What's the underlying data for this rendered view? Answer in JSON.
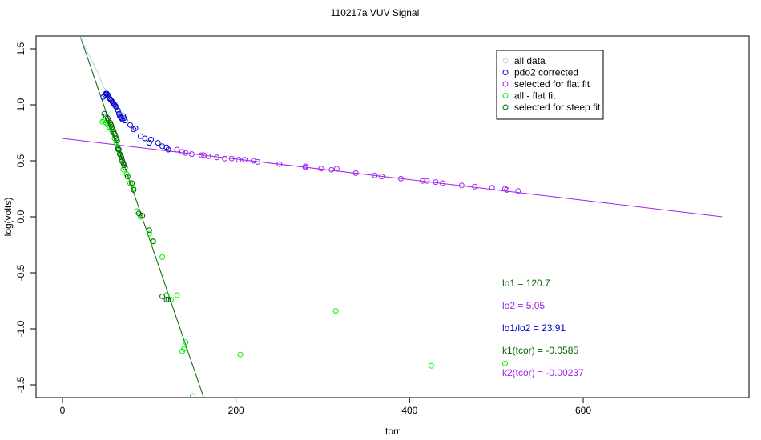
{
  "chart_data": {
    "type": "scatter",
    "title": "110217a   VUV Signal",
    "xlabel": "torr",
    "ylabel": "log(volts)",
    "xlim": [
      -45,
      795
    ],
    "ylim": [
      -1.62,
      1.62
    ],
    "xticks": [
      0,
      200,
      400,
      600
    ],
    "yticks": [
      -1.5,
      -1.0,
      -0.5,
      0.0,
      0.5,
      1.0,
      1.5
    ],
    "xtick_labels": [
      "0",
      "200",
      "400",
      "600"
    ],
    "ytick_labels": [
      "-1.5",
      "-1.0",
      "-0.5",
      "0.0",
      "0.5",
      "1.0",
      "1.5"
    ],
    "grid": false,
    "legend_position": "top-right",
    "legend": [
      {
        "label": "all data",
        "color": "#add8e6"
      },
      {
        "label": "pdo2 corrected",
        "color": "#0000cc"
      },
      {
        "label": "selected for flat fit",
        "color": "#a020f0"
      },
      {
        "label": "all - flat fit",
        "color": "#00ee00"
      },
      {
        "label": "selected for steep fit",
        "color": "#006400"
      }
    ],
    "annotations": [
      {
        "text": "lo1 =  120.7",
        "color": "#006400"
      },
      {
        "text": "lo2 =  5.05",
        "color": "#a020f0"
      },
      {
        "text": "lo1/lo2 =  23.91",
        "color": "#0000cc"
      },
      {
        "text": "k1(tcor) =  -0.0585",
        "color": "#006400"
      },
      {
        "text": "k2(tcor) =  -0.00237",
        "color": "#a020f0"
      }
    ],
    "lines": [
      {
        "name": "flat fit",
        "color": "#a020f0",
        "x": [
          0,
          760
        ],
        "y": [
          0.7,
          0.0
        ]
      },
      {
        "name": "steep fit",
        "color": "#006400",
        "x": [
          20,
          163
        ],
        "y": [
          1.62,
          -1.62
        ]
      },
      {
        "name": "all data curve",
        "color": "#add8e6",
        "x": [
          20,
          30,
          40,
          45,
          50,
          55,
          60,
          65,
          70
        ],
        "y": [
          1.62,
          1.45,
          1.3,
          1.2,
          1.12,
          1.05,
          1.0,
          0.96,
          0.92
        ]
      }
    ],
    "series": [
      {
        "name": "pdo2 corrected",
        "color": "#0000cc",
        "x": [
          47,
          49,
          50,
          51,
          52,
          53,
          54,
          55,
          56,
          57,
          58,
          59,
          60,
          61,
          62,
          64,
          65,
          66,
          67,
          68,
          69,
          70,
          71,
          72,
          78,
          82,
          84,
          90,
          95,
          100,
          102,
          110,
          115,
          120,
          122
        ],
        "y": [
          1.07,
          1.09,
          1.1,
          1.1,
          1.09,
          1.08,
          1.06,
          1.05,
          1.04,
          1.03,
          1.02,
          1.01,
          1.0,
          0.99,
          0.98,
          0.95,
          0.92,
          0.9,
          0.89,
          0.88,
          0.87,
          0.9,
          0.88,
          0.86,
          0.82,
          0.78,
          0.79,
          0.72,
          0.7,
          0.66,
          0.69,
          0.66,
          0.63,
          0.62,
          0.6
        ]
      },
      {
        "name": "selected for flat fit",
        "color": "#a020f0",
        "x": [
          132,
          138,
          142,
          149,
          160,
          163,
          168,
          178,
          187,
          195,
          203,
          210,
          220,
          225,
          250,
          280,
          280,
          298,
          310,
          316,
          338,
          360,
          368,
          390,
          415,
          420,
          430,
          438,
          460,
          475,
          495,
          510,
          512,
          525
        ],
        "y": [
          0.6,
          0.58,
          0.57,
          0.56,
          0.55,
          0.55,
          0.54,
          0.53,
          0.52,
          0.52,
          0.51,
          0.51,
          0.5,
          0.49,
          0.47,
          0.45,
          0.44,
          0.43,
          0.42,
          0.43,
          0.39,
          0.37,
          0.36,
          0.34,
          0.32,
          0.32,
          0.31,
          0.3,
          0.28,
          0.27,
          0.26,
          0.25,
          0.24,
          0.23
        ]
      },
      {
        "name": "all - flat fit",
        "color": "#00ee00",
        "x": [
          46,
          48,
          50,
          52,
          54,
          56,
          58,
          60,
          62,
          64,
          66,
          68,
          70,
          72,
          74,
          78,
          82,
          86,
          90,
          100,
          105,
          115,
          120,
          125,
          132,
          138,
          140,
          142,
          150,
          205,
          315,
          425,
          510
        ],
        "y": [
          0.85,
          0.86,
          0.84,
          0.82,
          0.8,
          0.78,
          0.75,
          0.7,
          0.66,
          0.6,
          0.56,
          0.5,
          0.42,
          0.44,
          0.38,
          0.3,
          0.25,
          0.05,
          0.0,
          -0.15,
          -0.22,
          -0.36,
          -0.7,
          -0.74,
          -0.7,
          -1.2,
          -1.18,
          -1.12,
          -1.6,
          -1.23,
          -0.84,
          -1.33,
          -1.31
        ]
      },
      {
        "name": "selected for steep fit",
        "color": "#006400",
        "x": [
          48,
          50,
          52,
          53,
          55,
          56,
          57,
          58,
          59,
          60,
          61,
          62,
          63,
          64,
          65,
          66,
          67,
          68,
          69,
          70,
          71,
          72,
          75,
          80,
          82,
          88,
          92,
          100,
          104,
          115,
          120,
          122
        ],
        "y": [
          0.92,
          0.9,
          0.88,
          0.86,
          0.84,
          0.82,
          0.8,
          0.78,
          0.76,
          0.74,
          0.72,
          0.7,
          0.68,
          0.61,
          0.6,
          0.56,
          0.55,
          0.53,
          0.5,
          0.48,
          0.46,
          0.44,
          0.36,
          0.3,
          0.24,
          0.03,
          0.01,
          -0.12,
          -0.22,
          -0.71,
          -0.74,
          -0.74
        ]
      }
    ]
  }
}
